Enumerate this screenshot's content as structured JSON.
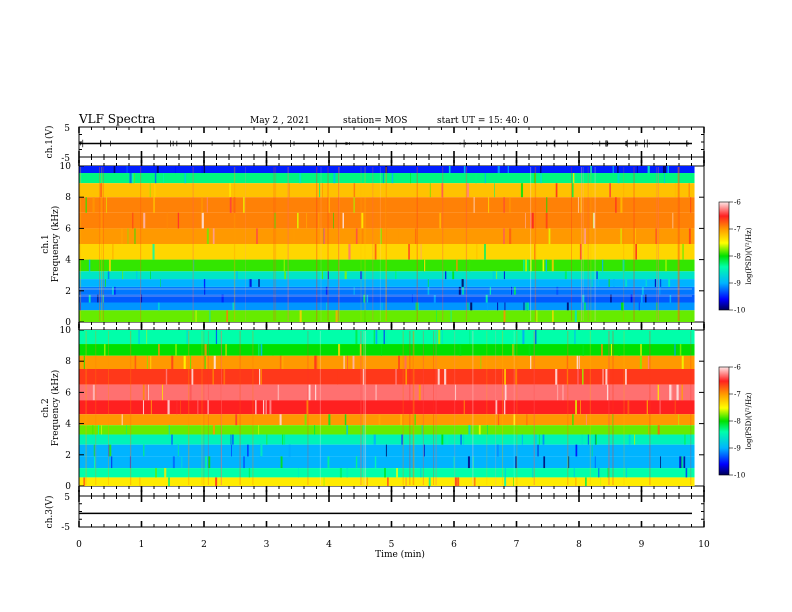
{
  "header": {
    "title": "VLF Spectra",
    "date": "May 2 , 2021",
    "station": "station= MOS",
    "start": "start  UT =   15: 40: 0"
  },
  "colors": {
    "scale": [
      "#000066",
      "#0000ff",
      "#00b4ff",
      "#00ffaa",
      "#00e000",
      "#aaff00",
      "#ffff00",
      "#ff9900",
      "#ff2a2a",
      "#ffcccc"
    ],
    "trace": "#000000"
  },
  "chart_data": [
    {
      "type": "line",
      "panel": "ch1-waveform",
      "ylabel": "ch.1(V)",
      "ylim": [
        -5,
        5
      ],
      "ytick_labels": [
        "5",
        "-5"
      ],
      "x": [
        0,
        10
      ],
      "y": [
        -0.5,
        -0.5
      ]
    },
    {
      "type": "heatmap",
      "panel": "ch1-spectrogram",
      "ylabel_1": "ch.1",
      "ylabel_2": "Frequency (kHz)",
      "ylim": [
        0,
        10
      ],
      "xlim": [
        0,
        9.85
      ],
      "ytick_labels": [
        "10",
        "8",
        "6",
        "4",
        "2",
        "0"
      ],
      "freq_khz": [
        9.8,
        9.3,
        8.5,
        7.5,
        6.5,
        5.5,
        4.5,
        3.5,
        3.0,
        2.5,
        2.0,
        1.5,
        1.0,
        0.5
      ],
      "log_psd": [
        -9.5,
        -8.3,
        -7.2,
        -6.9,
        -6.9,
        -7.0,
        -7.3,
        -7.9,
        -8.6,
        -9.0,
        -9.2,
        -9.3,
        -9.1,
        -7.8
      ],
      "colorbar": {
        "label": "log(PSD)(V²/Hz)",
        "range": [
          -10,
          -6
        ],
        "tick_labels": [
          "-6",
          "-7",
          "-8",
          "-9",
          "-10"
        ]
      }
    },
    {
      "type": "heatmap",
      "panel": "ch2-spectrogram",
      "ylabel_1": "ch.2",
      "ylabel_2": "Frequency (kHz)",
      "ylim": [
        0,
        10
      ],
      "xlim": [
        0,
        9.85
      ],
      "ytick_labels": [
        "10",
        "8",
        "6",
        "4",
        "2",
        "0"
      ],
      "freq_khz": [
        9.5,
        8.7,
        8.0,
        7.0,
        6.0,
        5.0,
        4.2,
        3.6,
        3.0,
        2.3,
        1.5,
        0.8,
        0.3
      ],
      "log_psd": [
        -8.4,
        -8.0,
        -7.0,
        -6.6,
        -6.3,
        -6.5,
        -7.0,
        -7.8,
        -8.5,
        -9.0,
        -9.0,
        -8.4,
        -7.4
      ],
      "colorbar": {
        "label": "log(PSD)(V²/Hz)",
        "range": [
          -10,
          -6
        ],
        "tick_labels": [
          "-6",
          "-7",
          "-8",
          "-9",
          "-10"
        ]
      }
    },
    {
      "type": "line",
      "panel": "ch3-waveform",
      "ylabel": "ch.3(V)",
      "ylim": [
        -5,
        5
      ],
      "ytick_labels": [
        "5",
        "-5"
      ],
      "x": [
        0,
        10
      ],
      "y": [
        -0.6,
        -0.6
      ]
    }
  ],
  "xaxis": {
    "label": "Time (min)",
    "xlim": [
      0,
      10
    ],
    "tick_labels": [
      "0",
      "1",
      "2",
      "3",
      "4",
      "5",
      "6",
      "7",
      "8",
      "9",
      "10"
    ]
  }
}
